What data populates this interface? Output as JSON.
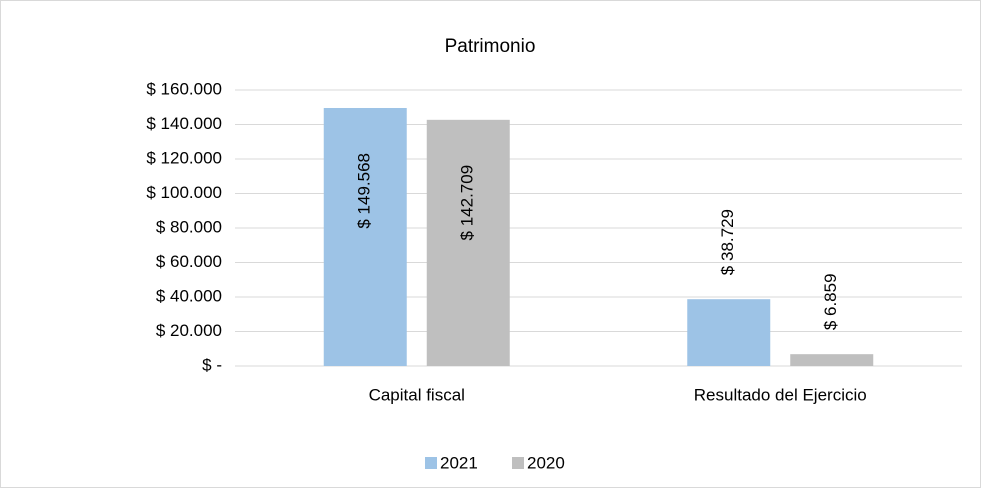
{
  "chart_data": {
    "type": "bar",
    "title": "Patrimonio",
    "categories": [
      "Capital fiscal",
      "Resultado del Ejercicio"
    ],
    "series": [
      {
        "name": "2021",
        "color": "#9dc3e6",
        "values": [
          149568,
          38729
        ],
        "value_labels": [
          "$ 149.568",
          "$ 38.729"
        ]
      },
      {
        "name": "2020",
        "color": "#bfbfbf",
        "values": [
          142709,
          6859
        ],
        "value_labels": [
          "$ 142.709",
          "$ 6.859"
        ]
      }
    ],
    "ylim": [
      0,
      160000
    ],
    "yticks": [
      {
        "value": 0,
        "label": "$ -"
      },
      {
        "value": 20000,
        "label": "$ 20.000"
      },
      {
        "value": 40000,
        "label": "$ 40.000"
      },
      {
        "value": 60000,
        "label": "$ 60.000"
      },
      {
        "value": 80000,
        "label": "$ 80.000"
      },
      {
        "value": 100000,
        "label": "$ 100.000"
      },
      {
        "value": 120000,
        "label": "$ 120.000"
      },
      {
        "value": 140000,
        "label": "$ 140.000"
      },
      {
        "value": 160000,
        "label": "$ 160.000"
      }
    ],
    "grid": true,
    "legend": "bottom"
  }
}
